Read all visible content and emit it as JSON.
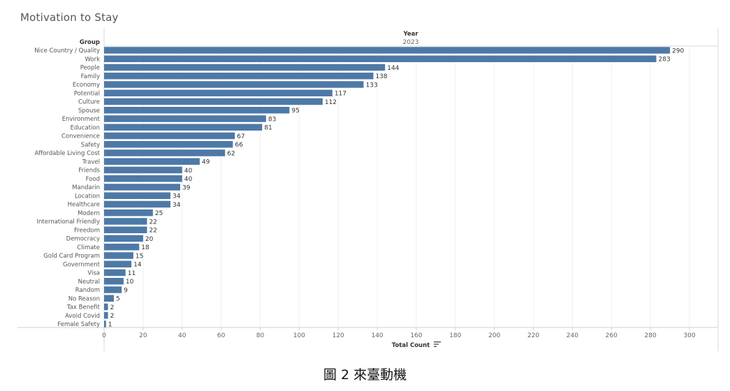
{
  "page": {
    "title": "Motivation to Stay",
    "caption": "圖 2 來臺動機"
  },
  "chart_data": {
    "type": "bar",
    "orientation": "horizontal",
    "title": "Motivation to Stay",
    "row_header": "Group",
    "column_header": "Year",
    "column_value": "2023",
    "xlabel": "Total Count",
    "xlim": [
      0,
      300
    ],
    "xticks": [
      0,
      20,
      40,
      60,
      80,
      100,
      120,
      140,
      160,
      180,
      200,
      220,
      240,
      260,
      280,
      300
    ],
    "grid": true,
    "bar_color": "#4e79a7",
    "categories": [
      "Nice Country / Quality",
      "Work",
      "People",
      "Family",
      "Economy",
      "Potential",
      "Culture",
      "Spouse",
      "Environment",
      "Education",
      "Convenience",
      "Safety",
      "Affordable Living Cost",
      "Travel",
      "Friends",
      "Food",
      "Mandarin",
      "Location",
      "Healthcare",
      "Modern",
      "International Friendly",
      "Freedom",
      "Democracy",
      "Climate",
      "Gold Card Program",
      "Government",
      "Visa",
      "Neutral",
      "Random",
      "No Reason",
      "Tax Benefit",
      "Avoid Covid",
      "Female Safety"
    ],
    "values": [
      290,
      283,
      144,
      138,
      133,
      117,
      112,
      95,
      83,
      81,
      67,
      66,
      62,
      49,
      40,
      40,
      39,
      34,
      34,
      25,
      22,
      22,
      20,
      18,
      15,
      14,
      11,
      10,
      9,
      5,
      2,
      2,
      1
    ]
  }
}
